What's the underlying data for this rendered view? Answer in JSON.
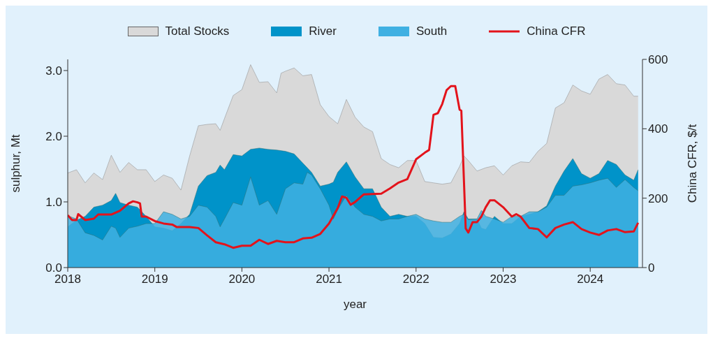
{
  "chart_data": {
    "type": "area",
    "xlabel": "year",
    "ylabel": "sulphur, Mt",
    "y2label": "China CFR, $/t",
    "xlim": [
      2018,
      2024.6
    ],
    "xticks": [
      2018,
      2019,
      2020,
      2021,
      2022,
      2023,
      2024
    ],
    "ylim": [
      0,
      3.17
    ],
    "yticks": [
      {
        "value": 0,
        "label": "0.0"
      },
      {
        "value": 1,
        "label": "1.0"
      },
      {
        "value": 2,
        "label": "2.0"
      },
      {
        "value": 3,
        "label": "3.0"
      }
    ],
    "y2lim": [
      0,
      600
    ],
    "y2ticks": [
      0,
      200,
      400,
      600
    ],
    "legend": "top",
    "grid": false,
    "series": [
      {
        "name": "Total Stocks",
        "color": "#d9d9d9",
        "x": [
          2018.0,
          2018.1,
          2018.2,
          2018.3,
          2018.4,
          2018.5,
          2018.6,
          2018.7,
          2018.8,
          2018.9,
          2019.0,
          2019.1,
          2019.2,
          2019.3,
          2019.4,
          2019.5,
          2019.6,
          2019.7,
          2019.75,
          2019.8,
          2019.9,
          2020.0,
          2020.1,
          2020.2,
          2020.3,
          2020.4,
          2020.45,
          2020.5,
          2020.6,
          2020.7,
          2020.8,
          2020.9,
          2021.0,
          2021.1,
          2021.2,
          2021.3,
          2021.4,
          2021.5,
          2021.6,
          2021.7,
          2021.8,
          2021.9,
          2022.0,
          2022.1,
          2022.2,
          2022.3,
          2022.4,
          2022.5,
          2022.55,
          2022.6,
          2022.7,
          2022.8,
          2022.9,
          2023.0,
          2023.1,
          2023.2,
          2023.3,
          2023.4,
          2023.5,
          2023.6,
          2023.7,
          2023.8,
          2023.9,
          2024.0,
          2024.1,
          2024.2,
          2024.3,
          2024.4,
          2024.5,
          2024.55
        ],
        "values": [
          1.44,
          1.49,
          1.29,
          1.44,
          1.34,
          1.71,
          1.45,
          1.6,
          1.49,
          1.49,
          1.31,
          1.41,
          1.36,
          1.18,
          1.7,
          2.16,
          2.18,
          2.19,
          2.09,
          2.27,
          2.62,
          2.71,
          3.09,
          2.82,
          2.83,
          2.66,
          2.96,
          2.99,
          3.04,
          2.92,
          2.94,
          2.48,
          2.3,
          2.19,
          2.56,
          2.29,
          2.14,
          2.07,
          1.66,
          1.57,
          1.52,
          1.63,
          1.63,
          1.31,
          1.29,
          1.27,
          1.29,
          1.54,
          1.7,
          1.63,
          1.47,
          1.52,
          1.55,
          1.41,
          1.55,
          1.61,
          1.6,
          1.77,
          1.89,
          2.43,
          2.51,
          2.78,
          2.69,
          2.64,
          2.87,
          2.94,
          2.8,
          2.78,
          2.61,
          2.61
        ]
      },
      {
        "name": "River",
        "color": "#0093c9",
        "x": [
          2018.0,
          2018.1,
          2018.2,
          2018.3,
          2018.4,
          2018.5,
          2018.55,
          2018.6,
          2018.7,
          2018.8,
          2018.9,
          2019.0,
          2019.1,
          2019.2,
          2019.3,
          2019.4,
          2019.5,
          2019.6,
          2019.7,
          2019.75,
          2019.8,
          2019.9,
          2020.0,
          2020.1,
          2020.2,
          2020.3,
          2020.4,
          2020.5,
          2020.6,
          2020.7,
          2020.75,
          2020.8,
          2020.9,
          2021.0,
          2021.05,
          2021.1,
          2021.2,
          2021.3,
          2021.4,
          2021.5,
          2021.6,
          2021.7,
          2021.8,
          2021.9,
          2022.0,
          2022.1,
          2022.2,
          2022.3,
          2022.4,
          2022.5,
          2022.55,
          2022.6,
          2022.7,
          2022.75,
          2022.8,
          2022.9,
          2023.0,
          2023.1,
          2023.2,
          2023.3,
          2023.4,
          2023.5,
          2023.6,
          2023.7,
          2023.8,
          2023.9,
          2024.0,
          2024.1,
          2024.2,
          2024.3,
          2024.4,
          2024.5,
          2024.55
        ],
        "values": [
          0.62,
          0.72,
          0.78,
          0.92,
          0.95,
          1.02,
          1.13,
          0.99,
          0.95,
          0.92,
          0.78,
          0.62,
          0.6,
          0.56,
          0.67,
          0.81,
          1.24,
          1.4,
          1.45,
          1.56,
          1.49,
          1.72,
          1.7,
          1.8,
          1.82,
          1.8,
          1.79,
          1.77,
          1.73,
          1.59,
          1.52,
          1.45,
          1.24,
          1.27,
          1.3,
          1.45,
          1.61,
          1.38,
          1.2,
          1.2,
          0.92,
          0.78,
          0.81,
          0.78,
          0.78,
          0.67,
          0.46,
          0.45,
          0.51,
          0.67,
          0.85,
          0.74,
          0.74,
          0.6,
          0.58,
          0.78,
          0.67,
          0.67,
          0.78,
          0.81,
          0.85,
          0.94,
          1.24,
          1.47,
          1.66,
          1.43,
          1.36,
          1.43,
          1.63,
          1.57,
          1.41,
          1.33,
          1.49
        ]
      },
      {
        "name": "South",
        "color": "#3fb0e2",
        "x": [
          2018.0,
          2018.1,
          2018.2,
          2018.3,
          2018.4,
          2018.5,
          2018.55,
          2018.6,
          2018.7,
          2018.8,
          2018.9,
          2019.0,
          2019.1,
          2019.2,
          2019.3,
          2019.4,
          2019.5,
          2019.6,
          2019.7,
          2019.75,
          2019.8,
          2019.9,
          2020.0,
          2020.1,
          2020.2,
          2020.3,
          2020.4,
          2020.5,
          2020.6,
          2020.7,
          2020.75,
          2020.8,
          2020.9,
          2021.0,
          2021.05,
          2021.1,
          2021.2,
          2021.3,
          2021.4,
          2021.5,
          2021.6,
          2021.7,
          2021.8,
          2021.9,
          2022.0,
          2022.1,
          2022.2,
          2022.3,
          2022.4,
          2022.5,
          2022.55,
          2022.6,
          2022.7,
          2022.75,
          2022.8,
          2022.9,
          2023.0,
          2023.1,
          2023.2,
          2023.3,
          2023.4,
          2023.5,
          2023.6,
          2023.7,
          2023.8,
          2023.9,
          2024.0,
          2024.1,
          2024.2,
          2024.3,
          2024.4,
          2024.5,
          2024.55
        ],
        "values": [
          0.79,
          0.74,
          0.53,
          0.49,
          0.42,
          0.63,
          0.6,
          0.46,
          0.6,
          0.63,
          0.67,
          0.67,
          0.85,
          0.81,
          0.74,
          0.78,
          0.95,
          0.92,
          0.78,
          0.62,
          0.74,
          0.99,
          0.95,
          1.38,
          0.95,
          1.02,
          0.81,
          1.2,
          1.29,
          1.27,
          1.45,
          1.41,
          1.2,
          0.95,
          0.74,
          0.88,
          1.1,
          0.92,
          0.81,
          0.78,
          0.71,
          0.74,
          0.74,
          0.78,
          0.81,
          0.74,
          0.71,
          0.69,
          0.69,
          0.78,
          0.81,
          0.73,
          0.74,
          0.87,
          0.78,
          0.74,
          0.69,
          0.78,
          0.78,
          0.85,
          0.85,
          0.92,
          1.1,
          1.1,
          1.24,
          1.26,
          1.29,
          1.33,
          1.36,
          1.22,
          1.34,
          1.22,
          1.17
        ]
      },
      {
        "name": "China CFR",
        "type": "line",
        "axis": "y2",
        "color": "#e3131b",
        "x": [
          2018.0,
          2018.05,
          2018.1,
          2018.12,
          2018.2,
          2018.3,
          2018.35,
          2018.5,
          2018.6,
          2018.7,
          2018.75,
          2018.8,
          2018.83,
          2018.85,
          2018.9,
          2019.0,
          2019.1,
          2019.2,
          2019.25,
          2019.4,
          2019.5,
          2019.6,
          2019.7,
          2019.8,
          2019.9,
          2020.0,
          2020.1,
          2020.2,
          2020.3,
          2020.4,
          2020.5,
          2020.6,
          2020.7,
          2020.8,
          2020.9,
          2021.0,
          2021.1,
          2021.15,
          2021.2,
          2021.25,
          2021.3,
          2021.4,
          2021.6,
          2021.7,
          2021.8,
          2021.9,
          2022.0,
          2022.1,
          2022.15,
          2022.2,
          2022.25,
          2022.3,
          2022.35,
          2022.4,
          2022.45,
          2022.5,
          2022.52,
          2022.57,
          2022.6,
          2022.65,
          2022.7,
          2022.75,
          2022.8,
          2022.85,
          2022.9,
          2023.0,
          2023.1,
          2023.15,
          2023.2,
          2023.3,
          2023.4,
          2023.5,
          2023.6,
          2023.7,
          2023.8,
          2023.9,
          2024.0,
          2024.1,
          2024.2,
          2024.3,
          2024.4,
          2024.5,
          2024.55
        ],
        "values": [
          151,
          137,
          137,
          154,
          137,
          141,
          153,
          153,
          164,
          185,
          191,
          188,
          185,
          147,
          147,
          134,
          127,
          124,
          117,
          117,
          114,
          93,
          73,
          67,
          57,
          63,
          63,
          80,
          68,
          77,
          73,
          73,
          84,
          86,
          97,
          127,
          171,
          205,
          201,
          181,
          189,
          211,
          213,
          228,
          245,
          255,
          312,
          331,
          339,
          440,
          445,
          471,
          511,
          523,
          523,
          455,
          452,
          113,
          101,
          131,
          131,
          147,
          174,
          194,
          194,
          174,
          147,
          154,
          147,
          114,
          111,
          87,
          114,
          124,
          131,
          111,
          101,
          94,
          107,
          111,
          102,
          104,
          129
        ]
      }
    ]
  }
}
